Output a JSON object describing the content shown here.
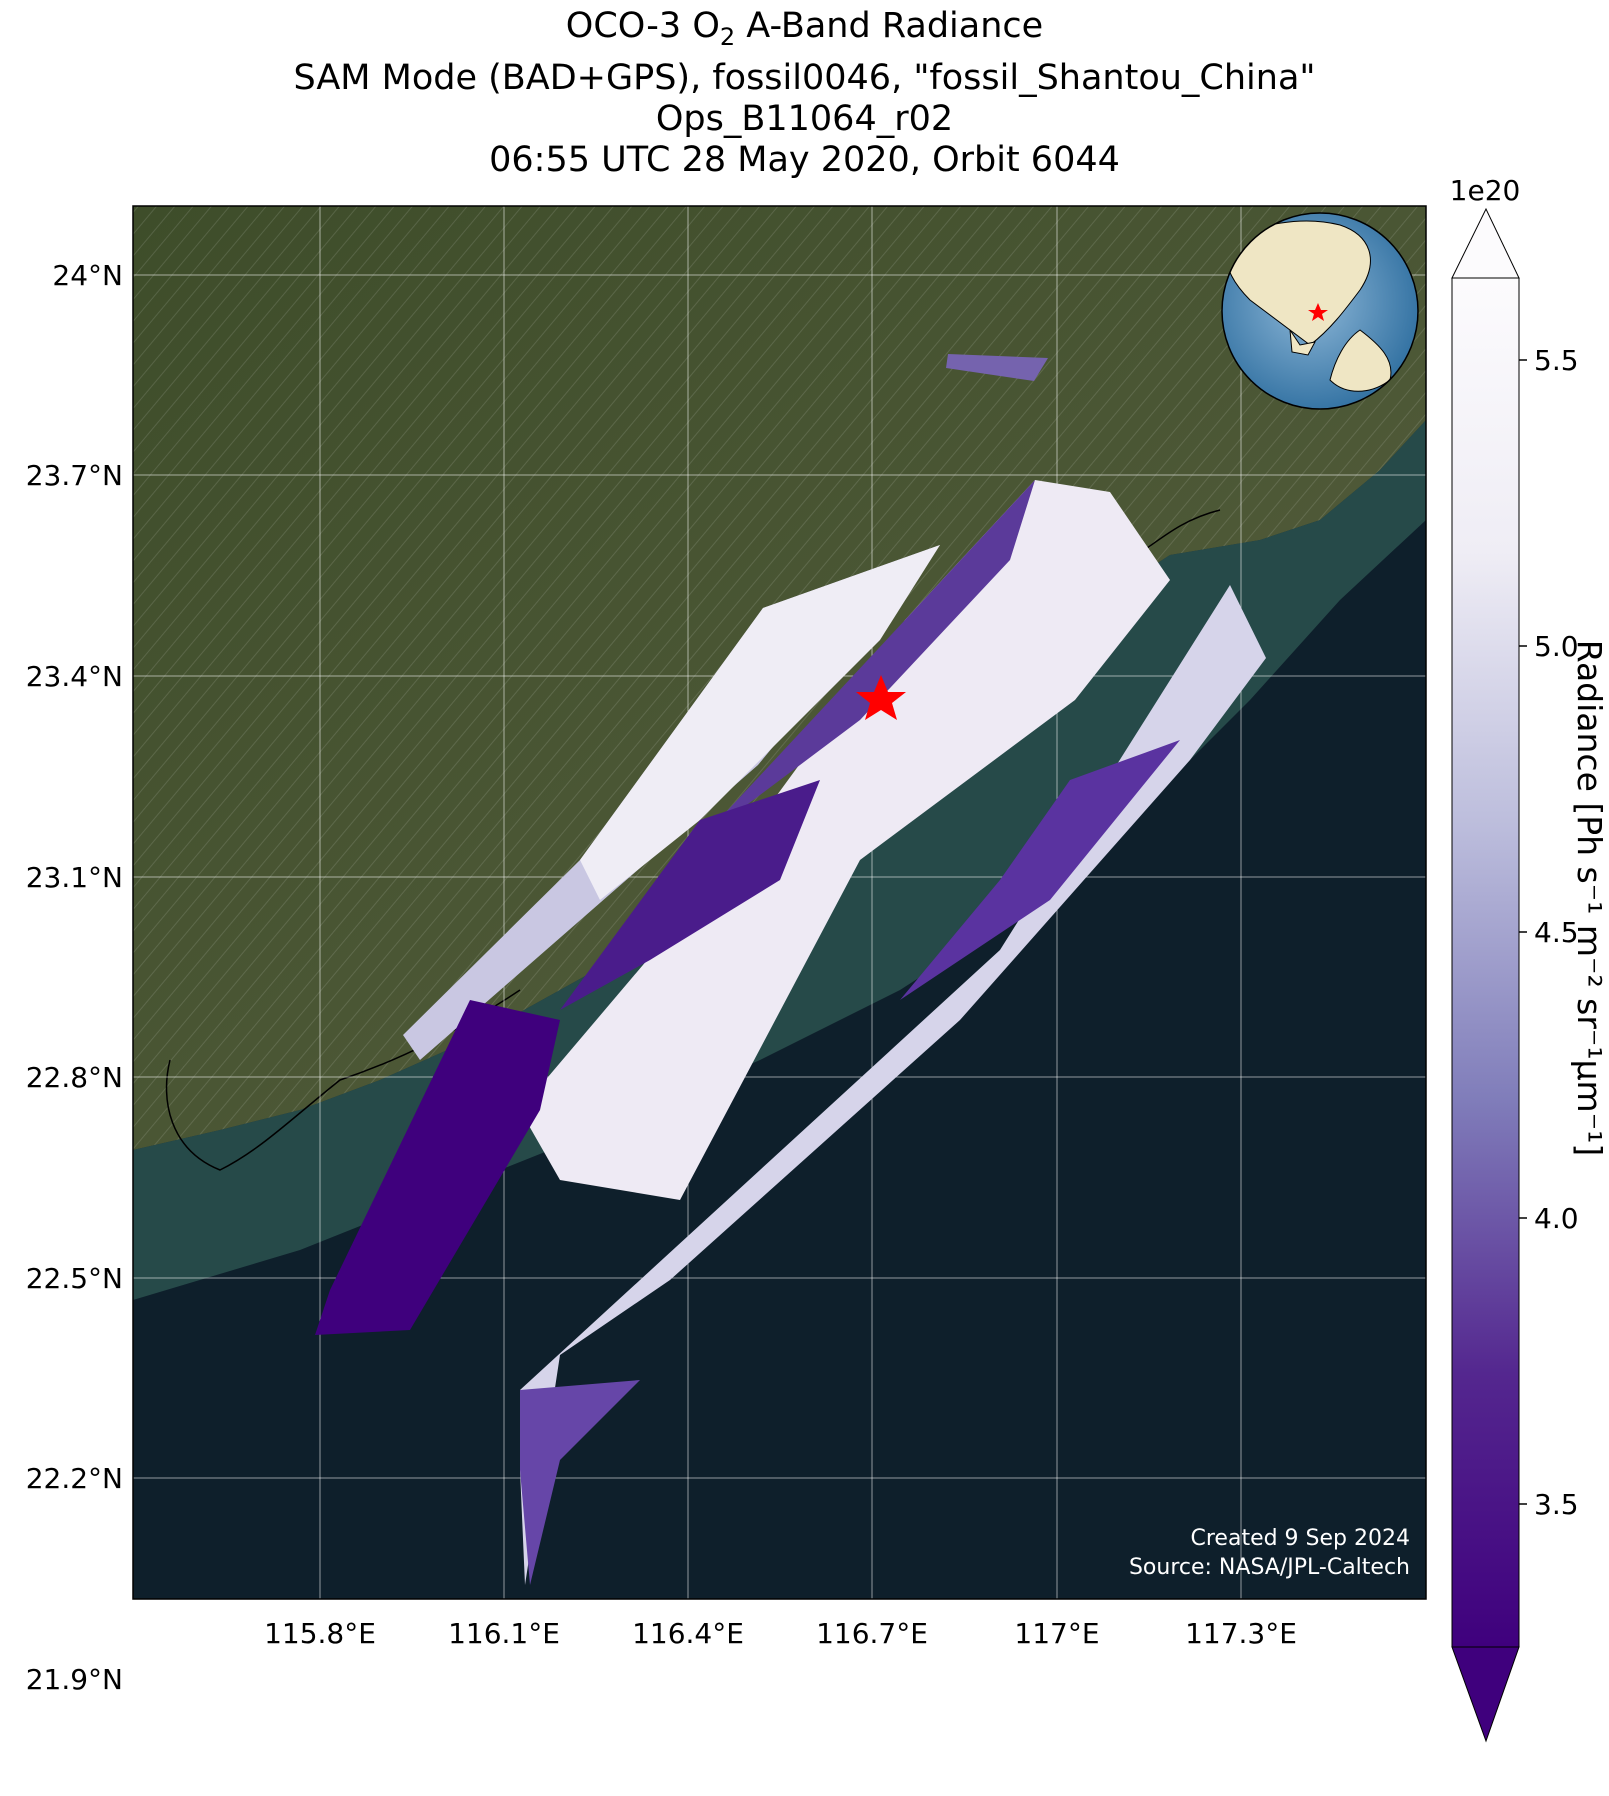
{
  "title": {
    "line1_pre": "OCO-3 O",
    "line1_sub": "2",
    "line1_post": " A-Band Radiance",
    "line2": "SAM Mode (BAD+GPS), fossil0046, \"fossil_Shantou_China\"",
    "line3": "Ops_B11064_r02",
    "line4": "06:55 UTC 28 May 2020, Orbit 6044"
  },
  "map": {
    "lat_ticks": [
      "24°N",
      "23.7°N",
      "23.4°N",
      "23.1°N",
      "22.8°N",
      "22.5°N",
      "22.2°N",
      "21.9°N"
    ],
    "lon_ticks": [
      "115.8°E",
      "116.1°E",
      "116.4°E",
      "116.7°E",
      "117°E",
      "117.3°E"
    ],
    "target_marker": "red-star",
    "basemap": "satellite imagery"
  },
  "colorbar": {
    "label": "Radiance [Ph s⁻¹ m⁻² sr⁻¹μm⁻¹]",
    "exponent": "1e20",
    "ticks": [
      "5.5",
      "5.0",
      "4.5",
      "4.0",
      "3.5"
    ],
    "colormap": "Purples",
    "color_low": "#3f007d",
    "color_high": "#fcfbfd"
  },
  "credit": {
    "created": "Created 9 Sep 2024",
    "source": "Source: NASA/JPL-Caltech"
  }
}
